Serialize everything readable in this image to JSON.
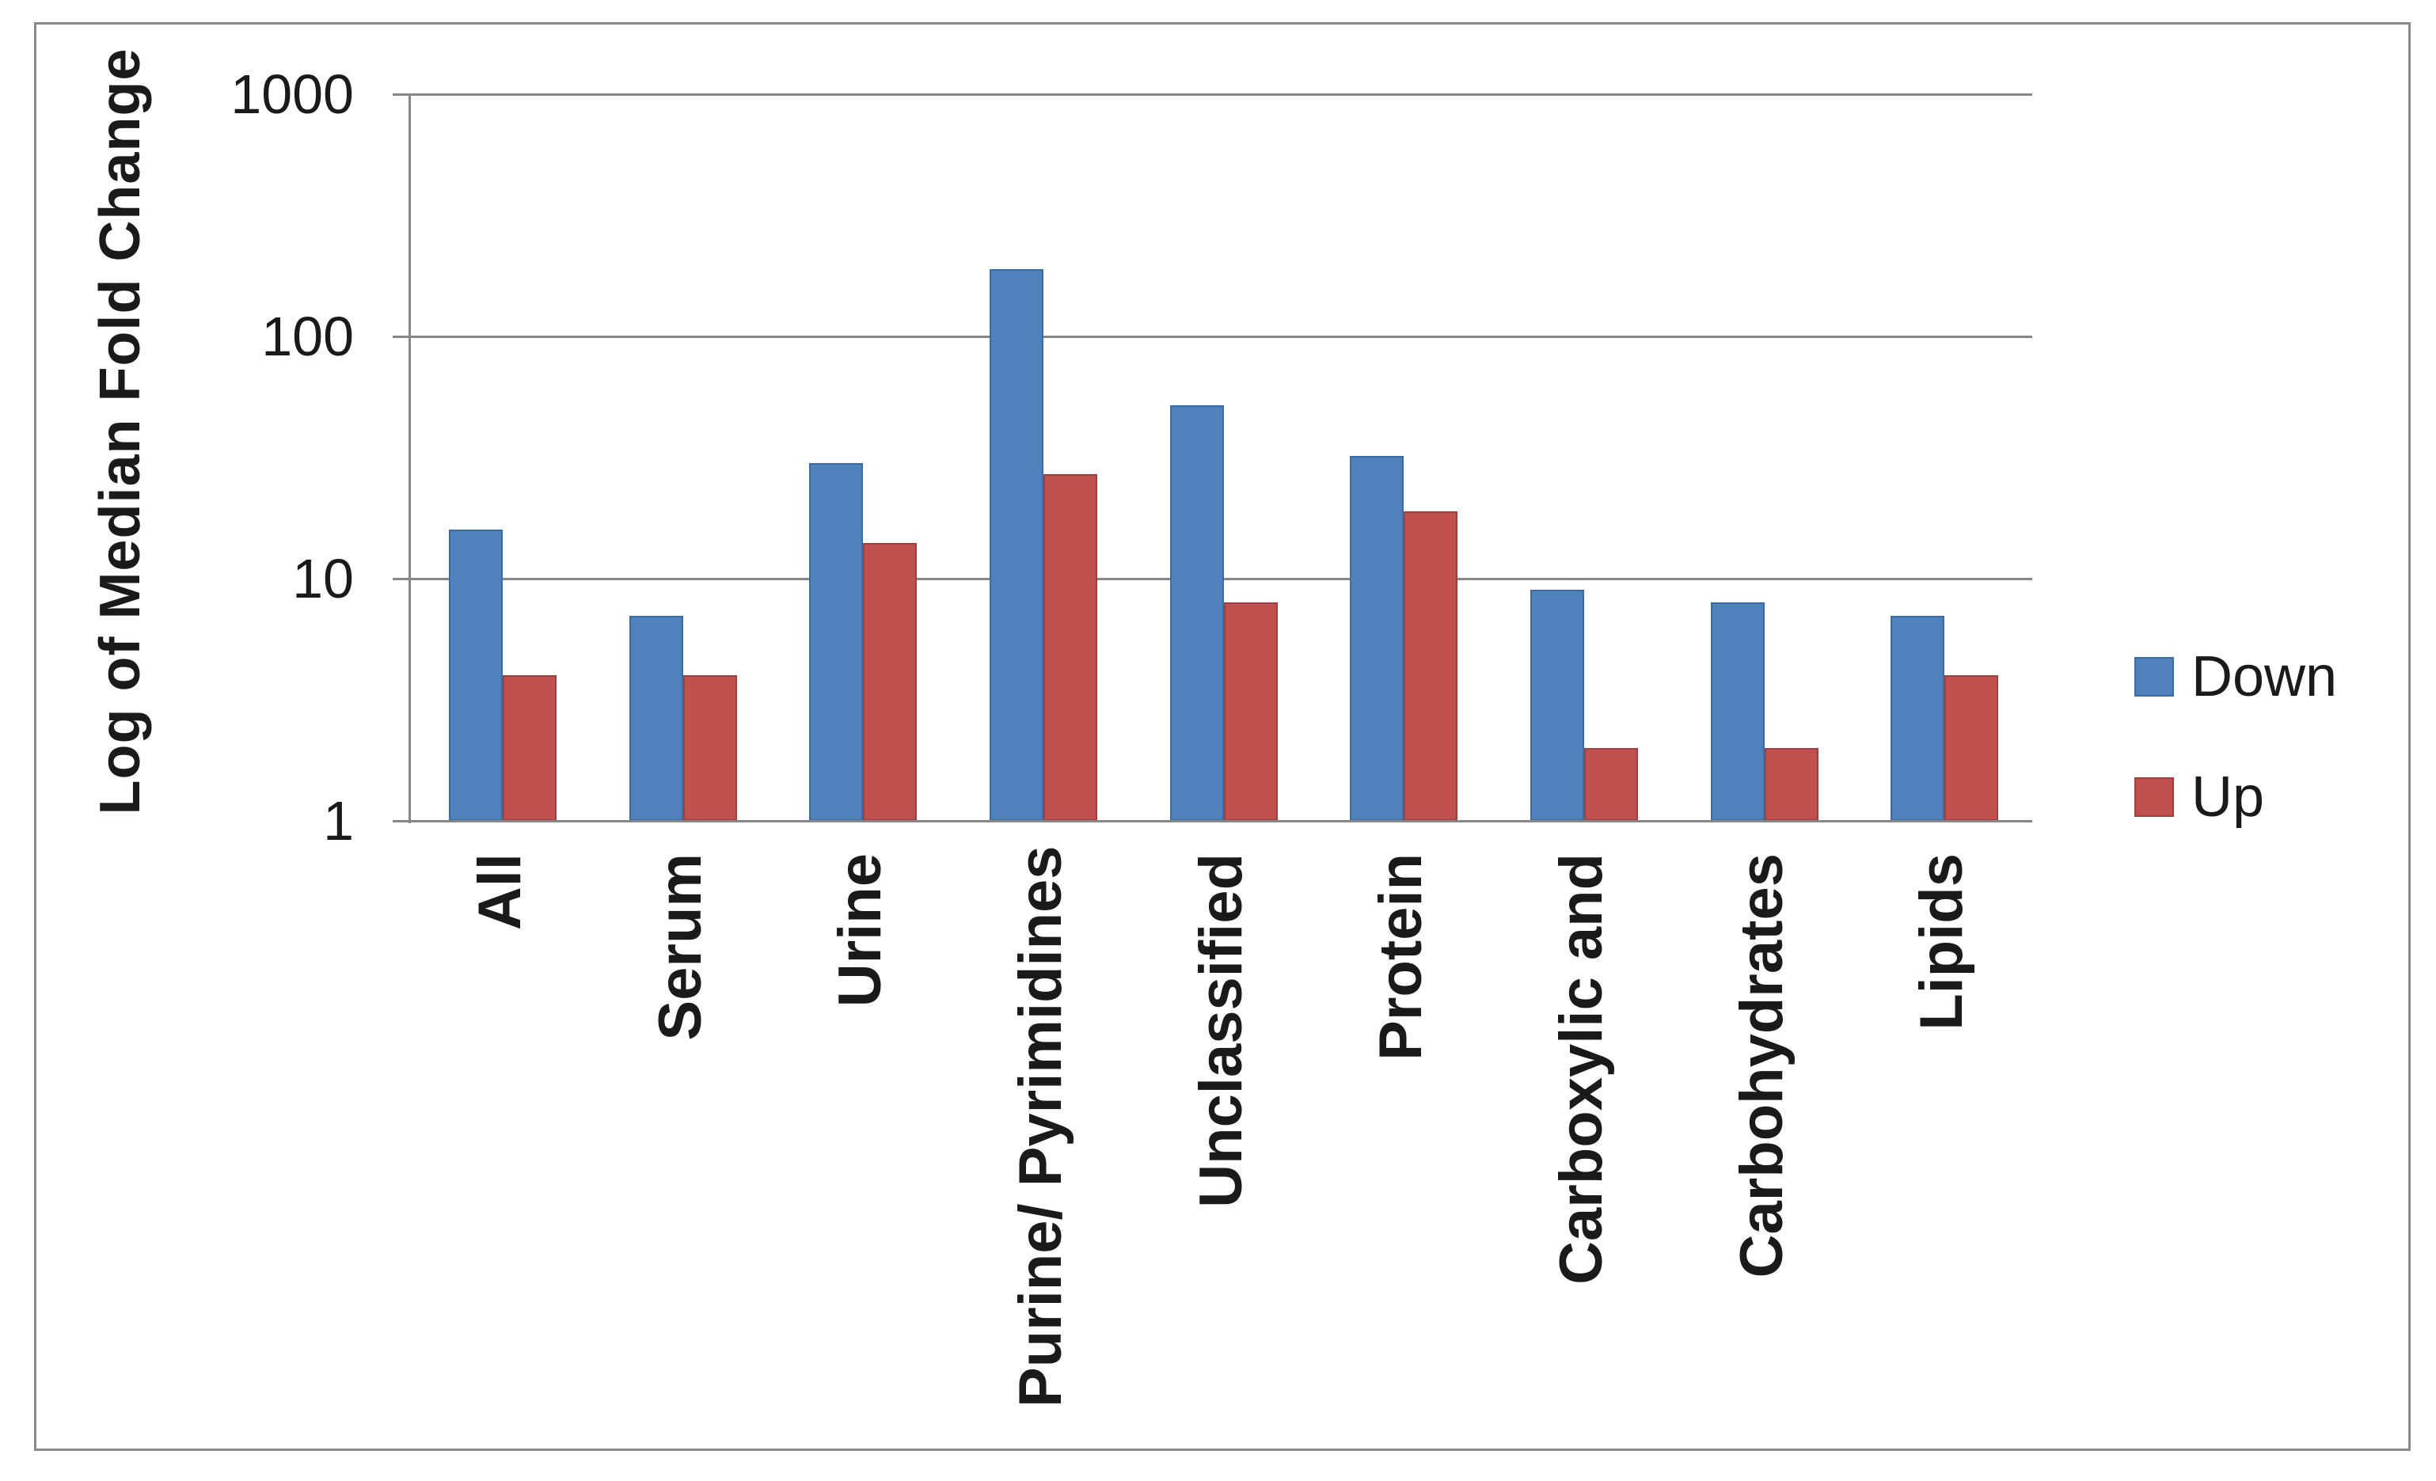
{
  "chart_data": {
    "type": "bar",
    "title": "",
    "ylabel": "Log of Median Fold Change",
    "xlabel": "",
    "y_scale": "log10",
    "ylim": [
      1,
      1000
    ],
    "y_ticks": [
      1000,
      100,
      10,
      1
    ],
    "grid": true,
    "legend_position": "right",
    "categories": [
      "All",
      "Serum",
      "Urine",
      "Purine/ Pyrimidines",
      "Unclassified",
      "Protein",
      "Carboxylic and",
      "Carbohydrates",
      "Lipids"
    ],
    "series": [
      {
        "name": "Down",
        "color": "#4F81BD",
        "border_color": "#3F6BA3",
        "values": [
          16,
          7,
          30,
          190,
          52,
          32,
          9,
          8,
          7
        ]
      },
      {
        "name": "Up",
        "color": "#C0504D",
        "border_color": "#9E403E",
        "values": [
          4,
          4,
          14,
          27,
          8,
          19,
          2,
          2,
          4
        ]
      }
    ]
  },
  "colors": {
    "grid": "#878787",
    "axis": "#878787",
    "frame": "#8A8A8A",
    "text": "#1A1A1A",
    "background": "#FFFFFF"
  }
}
